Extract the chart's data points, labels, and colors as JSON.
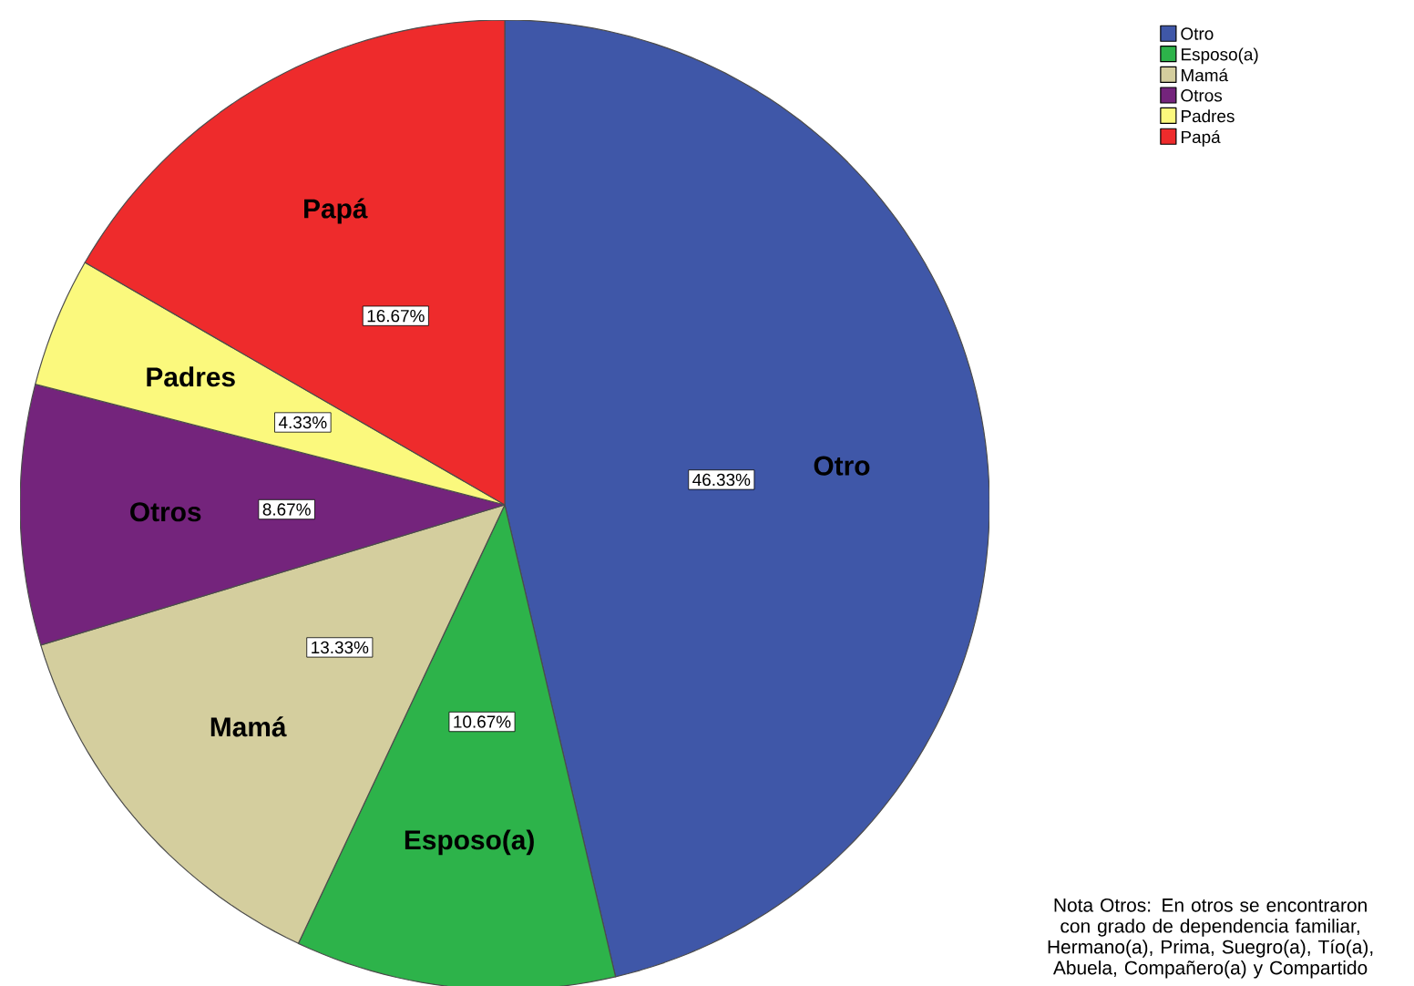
{
  "chart_data": {
    "type": "pie",
    "categories": [
      "Otro",
      "Esposo(a)",
      "Mamá",
      "Otros",
      "Padres",
      "Papá"
    ],
    "values": [
      46.33,
      10.67,
      13.33,
      8.67,
      4.33,
      16.67
    ],
    "colors": [
      "#3f57a8",
      "#2db34a",
      "#d4ce9e",
      "#74247c",
      "#fbf97d",
      "#ee2b2c"
    ],
    "value_labels": [
      "46.33%",
      "10.67%",
      "13.33%",
      "8.67%",
      "4.33%",
      "16.67%"
    ],
    "legend": "top right",
    "annotations": [
      "Nota Otros: En otros se encontraron con grado de dependencia familiar, Hermano(a), Prima, Suegro(a), Tío(a), Abuela, Compañero(a) y Compartido"
    ]
  }
}
